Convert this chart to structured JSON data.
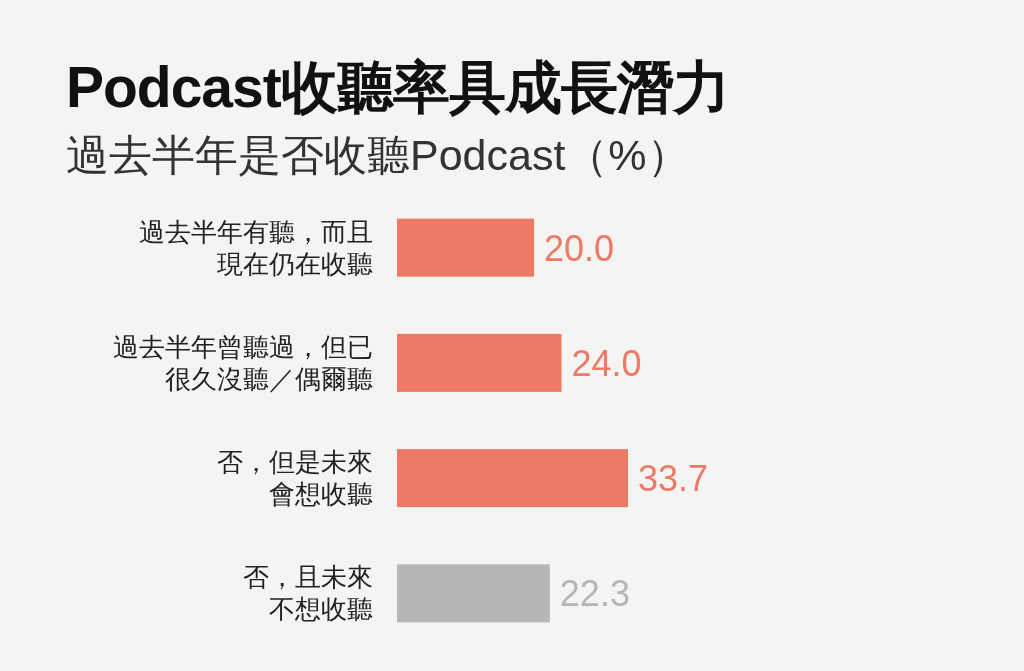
{
  "chart_data": {
    "type": "bar",
    "orientation": "horizontal",
    "title": "Podcast收聽率具成長潛力",
    "subtitle": "過去半年是否收聽Podcast（%）",
    "categories": [
      "過去半年有聽，而且現在仍在收聽",
      "過去半年曾聽過，但已很久沒聽／偶爾聽",
      "否，但是未來會想收聽",
      "否，且未來不想收聽"
    ],
    "values": [
      20.0,
      24.0,
      33.7,
      22.3
    ],
    "colors": [
      "#ed7a66",
      "#ed7a66",
      "#ed7a66",
      "#b5b6b5"
    ],
    "value_labels": [
      "20.0",
      "24.0",
      "33.7",
      "22.3"
    ]
  }
}
